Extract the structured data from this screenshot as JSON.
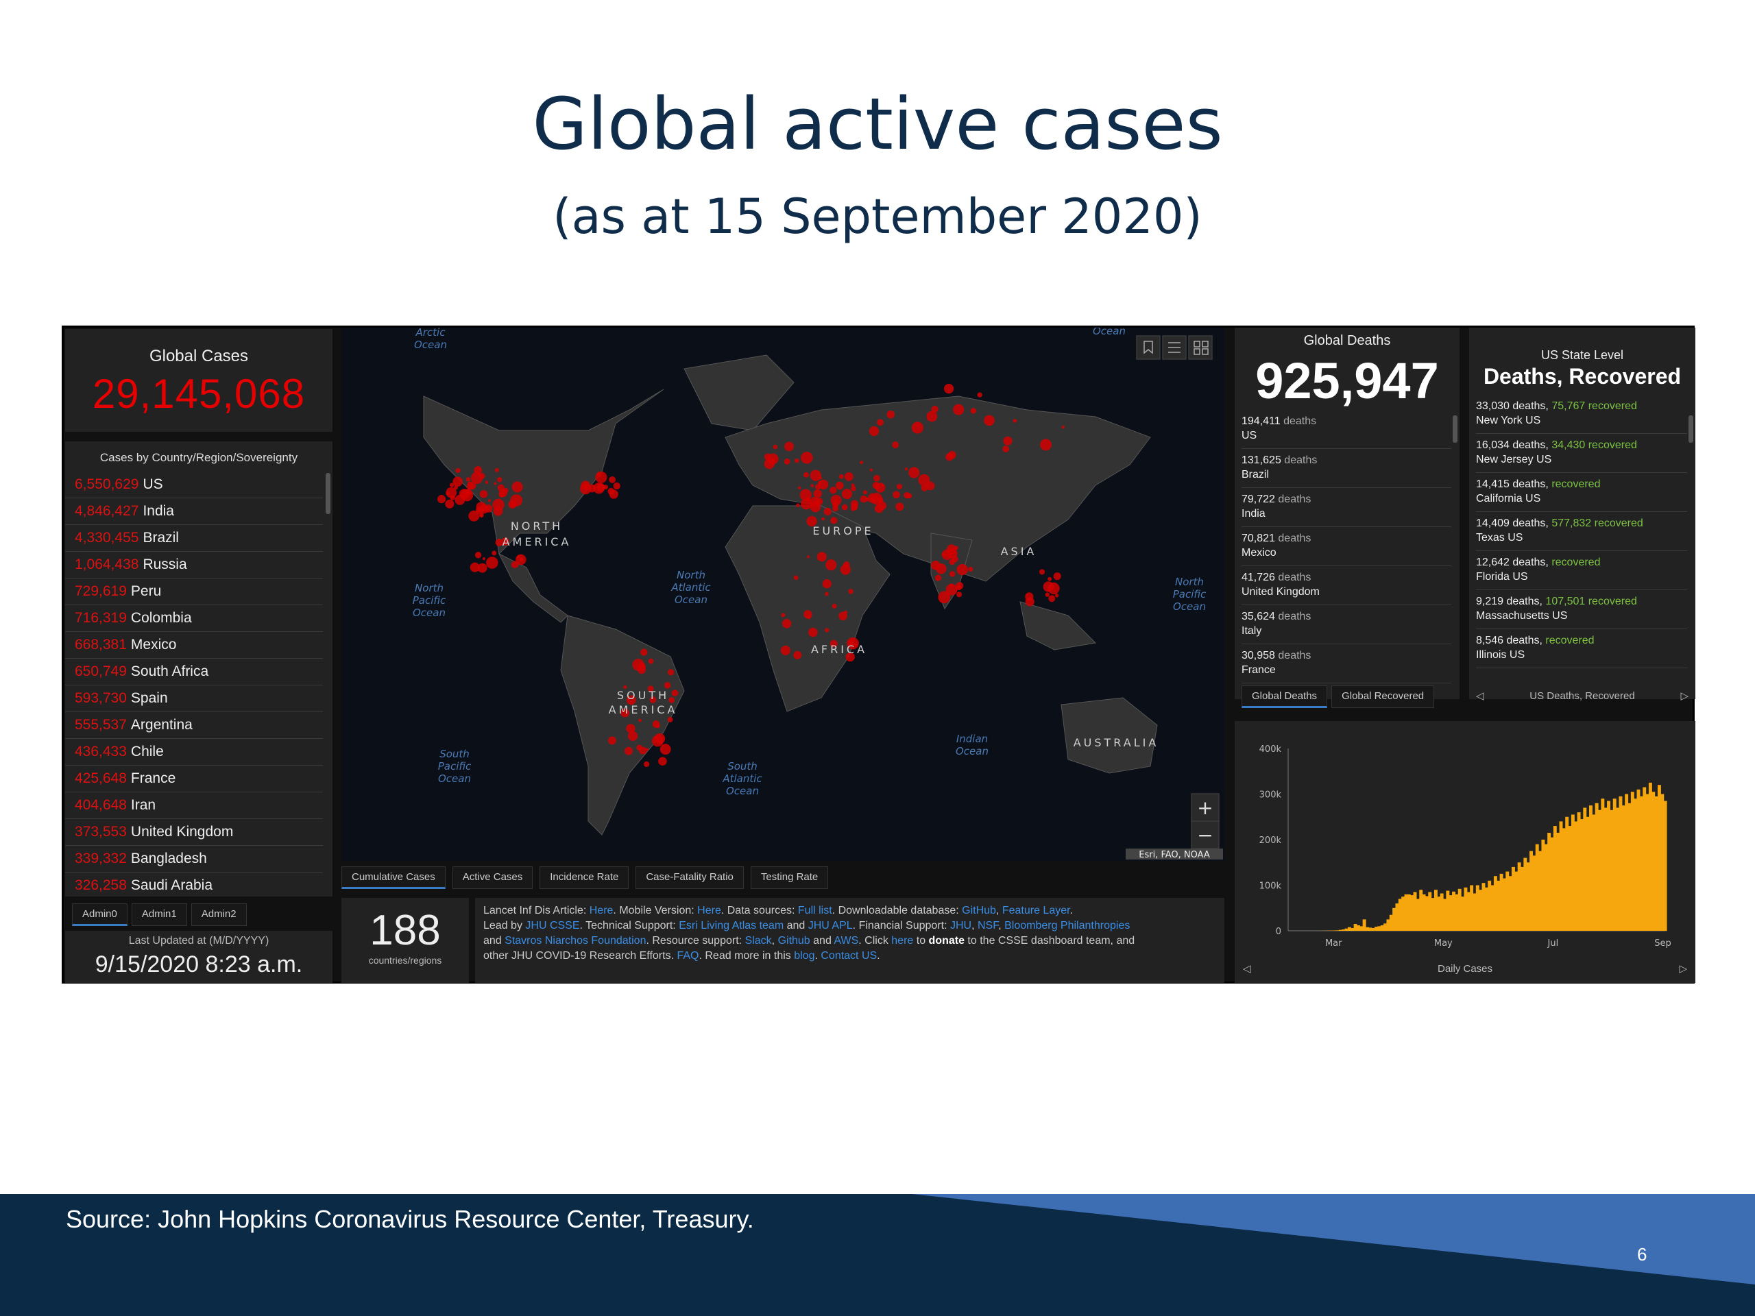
{
  "slide": {
    "title": "Global active cases",
    "subtitle": "(as at 15 September 2020)",
    "source": "Source: John Hopkins Coronavirus Resource Center, Treasury.",
    "page_number": "6"
  },
  "dashboard": {
    "global_cases_label": "Global Cases",
    "global_cases_value": "29,145,068",
    "cases_header": "Cases by Country/Region/Sovereignty",
    "countries": [
      {
        "num": "6,550,629",
        "name": "US"
      },
      {
        "num": "4,846,427",
        "name": "India"
      },
      {
        "num": "4,330,455",
        "name": "Brazil"
      },
      {
        "num": "1,064,438",
        "name": "Russia"
      },
      {
        "num": "729,619",
        "name": "Peru"
      },
      {
        "num": "716,319",
        "name": "Colombia"
      },
      {
        "num": "668,381",
        "name": "Mexico"
      },
      {
        "num": "650,749",
        "name": "South Africa"
      },
      {
        "num": "593,730",
        "name": "Spain"
      },
      {
        "num": "555,537",
        "name": "Argentina"
      },
      {
        "num": "436,433",
        "name": "Chile"
      },
      {
        "num": "425,648",
        "name": "France"
      },
      {
        "num": "404,648",
        "name": "Iran"
      },
      {
        "num": "373,553",
        "name": "United Kingdom"
      },
      {
        "num": "339,332",
        "name": "Bangladesh"
      },
      {
        "num": "326,258",
        "name": "Saudi Arabia"
      }
    ],
    "admin_tabs": [
      "Admin0",
      "Admin1",
      "Admin2"
    ],
    "last_updated_label": "Last Updated at (M/D/YYYY)",
    "last_updated_value": "9/15/2020 8:23 a.m.",
    "map_tabs": [
      "Cumulative Cases",
      "Active Cases",
      "Incidence Rate",
      "Case-Fatality Ratio",
      "Testing Rate"
    ],
    "map_labels": {
      "arctic": [
        "Arctic",
        "Ocean"
      ],
      "ocean_top": "Ocean",
      "north_america": [
        "NORTH",
        "AMERICA"
      ],
      "south_america": [
        "SOUTH",
        "AMERICA"
      ],
      "europe": "EUROPE",
      "asia": "ASIA",
      "africa": "AFRICA",
      "australia": "AUSTRALIA",
      "north_pacific_w": [
        "North",
        "Pacific",
        "Ocean"
      ],
      "north_atlantic": [
        "North",
        "Atlantic",
        "Ocean"
      ],
      "north_pacific_e": [
        "North",
        "Pacific",
        "Ocean"
      ],
      "south_pacific": [
        "South",
        "Pacific",
        "Ocean"
      ],
      "south_atlantic": [
        "South",
        "Atlantic",
        "Ocean"
      ],
      "indian": [
        "Indian",
        "Ocean"
      ],
      "attribution": "Esri, FAO, NOAA",
      "zoom_in": "+",
      "zoom_out": "−"
    },
    "countries_count": "188",
    "countries_count_label": "countries/regions",
    "info_lines": [
      [
        {
          "t": "Lancet Inf Dis Article: "
        },
        {
          "t": "Here",
          "l": 1
        },
        {
          "t": ". Mobile Version: "
        },
        {
          "t": "Here",
          "l": 1
        },
        {
          "t": ". Data sources: "
        },
        {
          "t": "Full list",
          "l": 1
        },
        {
          "t": ". Downloadable database: "
        },
        {
          "t": "GitHub",
          "l": 1
        },
        {
          "t": ", "
        },
        {
          "t": "Feature Layer",
          "l": 1
        },
        {
          "t": "."
        }
      ],
      [
        {
          "t": "Lead by "
        },
        {
          "t": "JHU CSSE",
          "l": 1
        },
        {
          "t": ". Technical Support: "
        },
        {
          "t": "Esri Living Atlas team",
          "l": 1
        },
        {
          "t": " and "
        },
        {
          "t": "JHU APL",
          "l": 1
        },
        {
          "t": ". Financial Support: "
        },
        {
          "t": "JHU",
          "l": 1
        },
        {
          "t": ", "
        },
        {
          "t": "NSF",
          "l": 1
        },
        {
          "t": ", "
        },
        {
          "t": "Bloomberg Philanthropies",
          "l": 1
        }
      ],
      [
        {
          "t": "and "
        },
        {
          "t": "Stavros Niarchos Foundation",
          "l": 1
        },
        {
          "t": ". Resource support: "
        },
        {
          "t": "Slack",
          "l": 1
        },
        {
          "t": ", "
        },
        {
          "t": "Github",
          "l": 1
        },
        {
          "t": " and "
        },
        {
          "t": "AWS",
          "l": 1
        },
        {
          "t": ". Click "
        },
        {
          "t": "here",
          "l": 1
        },
        {
          "t": " to "
        },
        {
          "t": "donate",
          "b": 1
        },
        {
          "t": " to the CSSE dashboard team, and"
        }
      ],
      [
        {
          "t": "other JHU COVID-19 Research Efforts. "
        },
        {
          "t": "FAQ",
          "l": 1
        },
        {
          "t": ". Read more in this "
        },
        {
          "t": "blog",
          "l": 1
        },
        {
          "t": ". "
        },
        {
          "t": "Contact US",
          "l": 1
        },
        {
          "t": "."
        }
      ]
    ],
    "global_deaths_label": "Global Deaths",
    "global_deaths_value": "925,947",
    "deaths": [
      {
        "num": "194,411",
        "word": "deaths",
        "loc": "US"
      },
      {
        "num": "131,625",
        "word": "deaths",
        "loc": "Brazil"
      },
      {
        "num": "79,722",
        "word": "deaths",
        "loc": "India"
      },
      {
        "num": "70,821",
        "word": "deaths",
        "loc": "Mexico"
      },
      {
        "num": "41,726",
        "word": "deaths",
        "loc": "United Kingdom"
      },
      {
        "num": "35,624",
        "word": "deaths",
        "loc": "Italy"
      },
      {
        "num": "30,958",
        "word": "deaths",
        "loc": "France"
      }
    ],
    "deaths_tabs": [
      "Global Deaths",
      "Global Recovered"
    ],
    "us_label": "US State Level",
    "us_title": "Deaths, Recovered",
    "states": [
      {
        "deaths": "33,030 deaths,",
        "rec": "75,767",
        "word": "recovered",
        "loc": "New York US"
      },
      {
        "deaths": "16,034 deaths,",
        "rec": "34,430",
        "word": "recovered",
        "loc": "New Jersey US"
      },
      {
        "deaths": "14,415 deaths,",
        "rec": "",
        "word": "recovered",
        "loc": "California US"
      },
      {
        "deaths": "14,409 deaths,",
        "rec": "577,832",
        "word": "recovered",
        "loc": "Texas US"
      },
      {
        "deaths": "12,642 deaths,",
        "rec": "",
        "word": "recovered",
        "loc": "Florida US"
      },
      {
        "deaths": "9,219 deaths,",
        "rec": "107,501",
        "word": "recovered",
        "loc": "Massachusetts US"
      },
      {
        "deaths": "8,546 deaths,",
        "rec": "",
        "word": "recovered",
        "loc": "Illinois US"
      }
    ],
    "us_nav_label": "US Deaths, Recovered",
    "chart_nav_label": "Daily Cases",
    "nav_prev": "◁",
    "nav_next": "▷"
  },
  "colors": {
    "title": "#0f2c4a",
    "cases_red": "#e60000",
    "recovered_green": "#7cc242",
    "chart_bar": "#f5a70d",
    "footer_dark": "#0b2a45",
    "footer_accent": "#3d6eb4"
  },
  "icons": [
    "bookmark-icon",
    "list-icon",
    "grid-icon",
    "zoom-in-icon",
    "zoom-out-icon",
    "chevron-left-icon",
    "chevron-right-icon"
  ],
  "chart_data": {
    "type": "bar",
    "title": "",
    "xlabel": "Daily Cases",
    "ylabel": "",
    "ylim": [
      0,
      400000
    ],
    "y_ticks": [
      "0",
      "100k",
      "200k",
      "300k",
      "400k"
    ],
    "x_ticks": [
      "Mar",
      "May",
      "Jul",
      "Sep"
    ],
    "grid": false,
    "series": [
      {
        "values": [
          0,
          0,
          0,
          0,
          0,
          0,
          0,
          0,
          0,
          0,
          100,
          200,
          300,
          400,
          500,
          700,
          1000,
          2000,
          3000,
          5000,
          8000,
          6000,
          15000,
          12000,
          10000,
          25000,
          8000,
          7000,
          6000,
          9000,
          10000,
          12000,
          16000,
          25000,
          35000,
          50000,
          60000,
          70000,
          75000,
          80000,
          80000,
          78000,
          85000,
          70000,
          90000,
          80000,
          76000,
          85000,
          72000,
          90000,
          75000,
          82000,
          70000,
          88000,
          78000,
          86000,
          80000,
          92000,
          75000,
          95000,
          85000,
          100000,
          82000,
          100000,
          90000,
          105000,
          95000,
          110000,
          100000,
          120000,
          110000,
          125000,
          115000,
          130000,
          120000,
          140000,
          130000,
          150000,
          140000,
          160000,
          150000,
          175000,
          165000,
          190000,
          175000,
          200000,
          190000,
          215000,
          205000,
          230000,
          215000,
          240000,
          225000,
          250000,
          230000,
          255000,
          240000,
          260000,
          245000,
          270000,
          250000,
          275000,
          255000,
          280000,
          265000,
          290000,
          270000,
          285000,
          265000,
          290000,
          270000,
          295000,
          275000,
          300000,
          280000,
          305000,
          290000,
          310000,
          295000,
          315000,
          300000,
          325000,
          305000,
          295000,
          320000,
          300000,
          285000
        ]
      }
    ]
  }
}
